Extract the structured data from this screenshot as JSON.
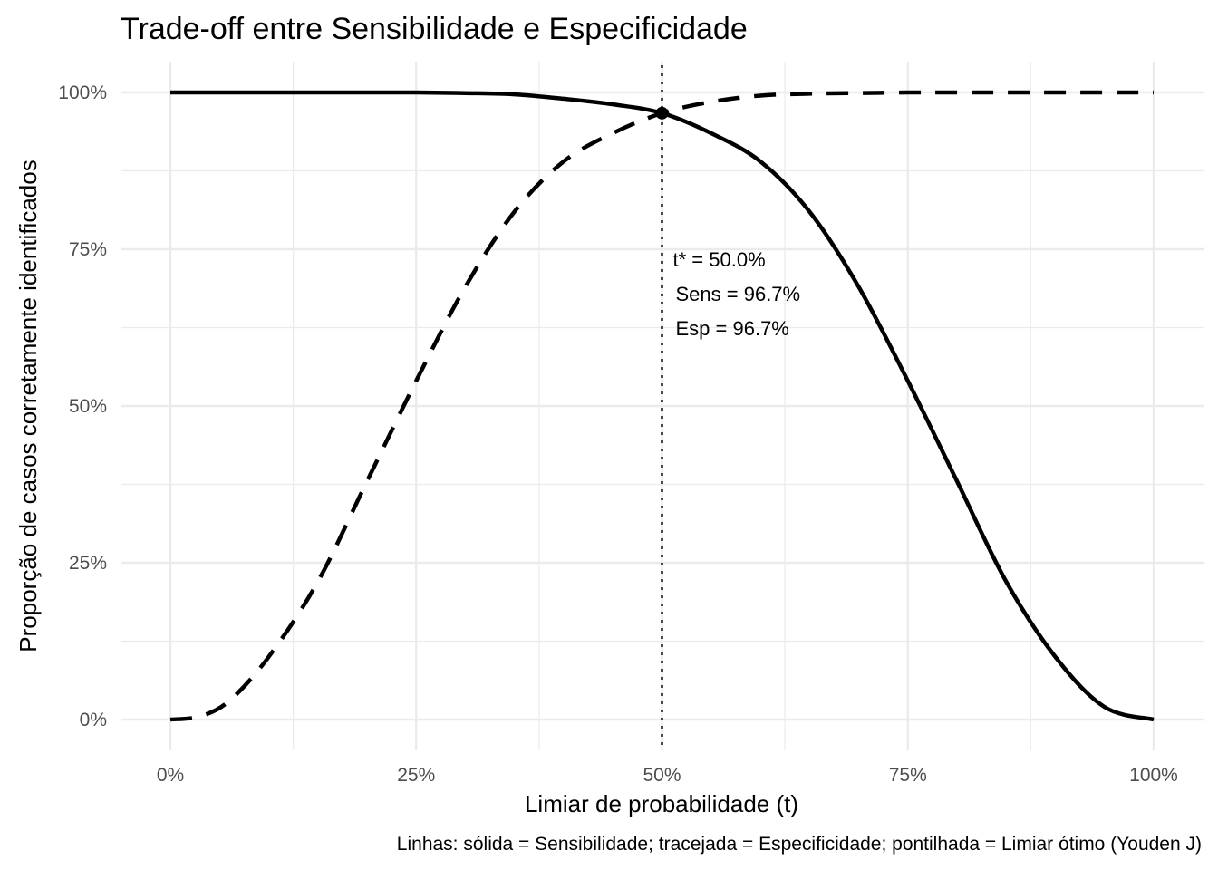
{
  "chart_data": {
    "type": "line",
    "title": "Trade-off entre Sensibilidade e Especificidade",
    "xlabel": "Limiar de probabilidade (t)",
    "ylabel": "Proporção de casos corretamente identificados",
    "caption": "Linhas: sólida = Sensibilidade; tracejada = Especificidade; pontilhada = Limiar ótimo (Youden J)",
    "xlim": [
      0,
      1
    ],
    "ylim": [
      0,
      1
    ],
    "x_ticks": [
      {
        "value": 0,
        "label": "0%"
      },
      {
        "value": 0.25,
        "label": "25%"
      },
      {
        "value": 0.5,
        "label": "50%"
      },
      {
        "value": 0.75,
        "label": "75%"
      },
      {
        "value": 1,
        "label": "100%"
      }
    ],
    "y_ticks": [
      {
        "value": 0,
        "label": "0%"
      },
      {
        "value": 0.25,
        "label": "25%"
      },
      {
        "value": 0.5,
        "label": "50%"
      },
      {
        "value": 0.75,
        "label": "75%"
      },
      {
        "value": 1,
        "label": "100%"
      }
    ],
    "grid": true,
    "legend": "none",
    "line_color": "#000000",
    "grid_color": "#ebebeb",
    "series": [
      {
        "style": "solid",
        "x": [
          0,
          0.05,
          0.1,
          0.15,
          0.2,
          0.25,
          0.3,
          0.35,
          0.4,
          0.45,
          0.5,
          0.55,
          0.6,
          0.65,
          0.7,
          0.75,
          0.8,
          0.85,
          0.9,
          0.95,
          1.0
        ],
        "y": [
          1.0,
          1.0,
          1.0,
          1.0,
          1.0,
          1.0,
          0.999,
          0.997,
          0.99,
          0.981,
          0.967,
          0.935,
          0.89,
          0.81,
          0.69,
          0.54,
          0.38,
          0.22,
          0.1,
          0.02,
          0.0
        ]
      },
      {
        "style": "dashed",
        "x": [
          0,
          0.03,
          0.06,
          0.1,
          0.15,
          0.2,
          0.25,
          0.3,
          0.35,
          0.4,
          0.45,
          0.5,
          0.55,
          0.6,
          0.65,
          0.7,
          0.75,
          0.8,
          0.85,
          0.9,
          0.95,
          1.0
        ],
        "y": [
          0.0,
          0.005,
          0.03,
          0.1,
          0.22,
          0.38,
          0.54,
          0.69,
          0.81,
          0.89,
          0.935,
          0.967,
          0.985,
          0.995,
          0.998,
          0.999,
          1.0,
          1.0,
          1.0,
          1.0,
          1.0,
          1.0
        ]
      }
    ],
    "optimal_threshold": {
      "x": 0.5,
      "y": 0.967,
      "labels": [
        "t* = 50.0%",
        "Sens = 96.7%",
        "Esp = 96.7%"
      ]
    }
  }
}
